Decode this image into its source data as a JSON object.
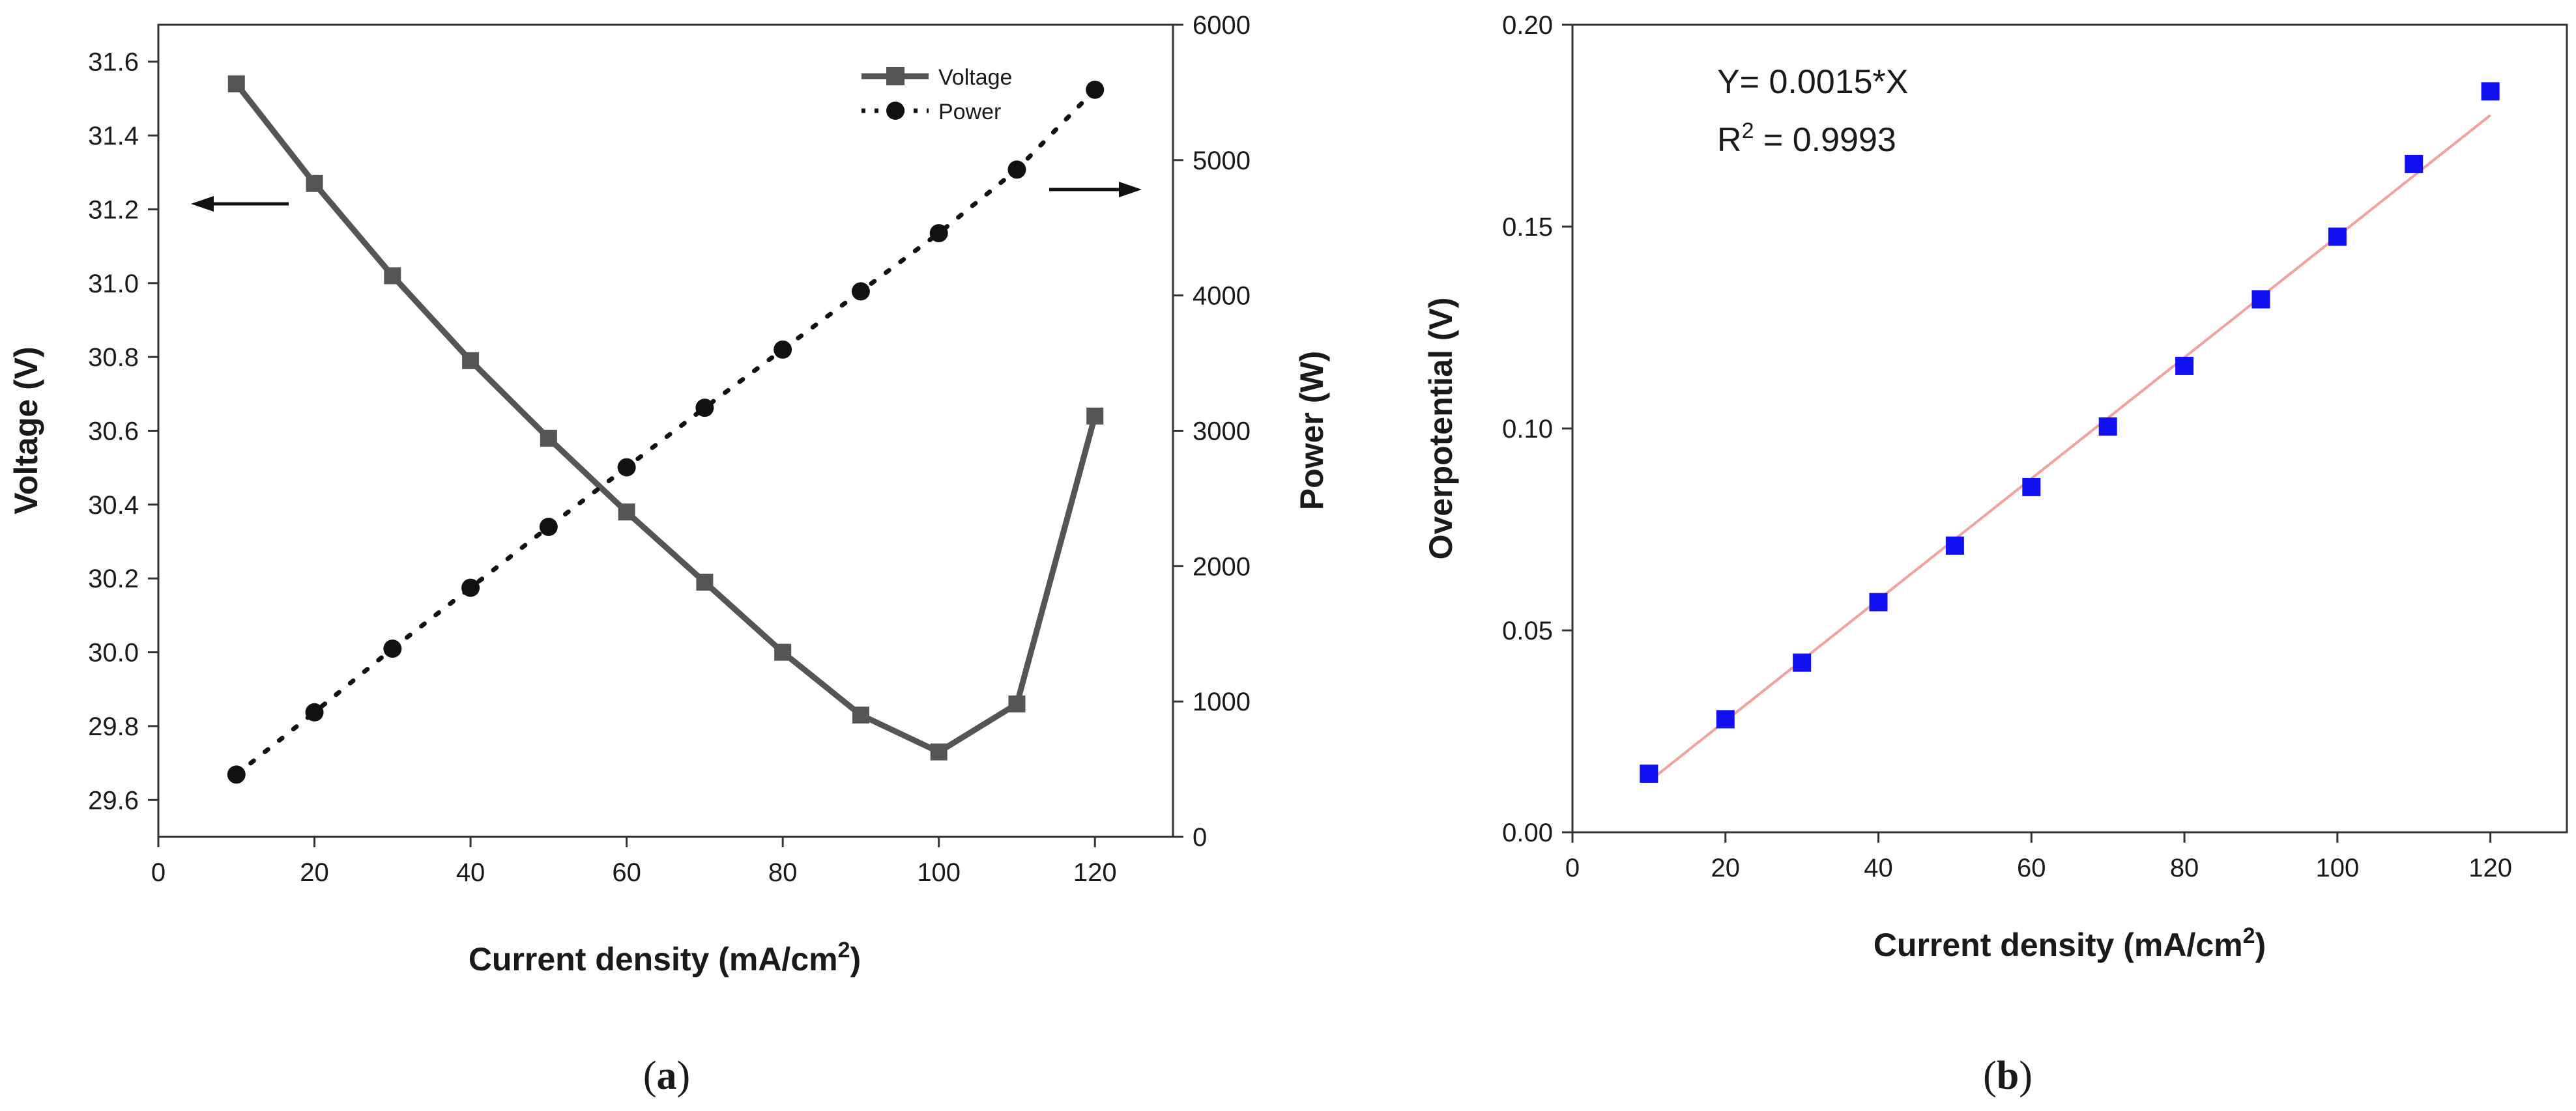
{
  "chart_data": [
    {
      "id": "a",
      "type": "line",
      "caption_letter": "a",
      "xlabel_main": "Current density (mA/cm",
      "xlabel_sup": "2",
      "xlabel_end": ")",
      "ylabel": "Voltage (V)",
      "y2label": "Power (W)",
      "xlim": [
        0,
        130
      ],
      "ylim": [
        29.5,
        31.7
      ],
      "y2lim": [
        0,
        6000
      ],
      "xticks": [
        0,
        20,
        40,
        60,
        80,
        100,
        120
      ],
      "yticks": [
        29.6,
        29.8,
        30.0,
        30.2,
        30.4,
        30.6,
        30.8,
        31.0,
        31.2,
        31.4,
        31.6
      ],
      "ytick_labels": [
        "29.6",
        "29.8",
        "30.0",
        "30.2",
        "30.4",
        "30.6",
        "30.8",
        "31.0",
        "31.2",
        "31.4",
        "31.6"
      ],
      "y2ticks": [
        0,
        1000,
        2000,
        3000,
        4000,
        5000,
        6000
      ],
      "legend_location": "top-right",
      "series": [
        {
          "name": "Voltage",
          "axis": "left",
          "marker": "square",
          "line": "solid",
          "color": "#555555",
          "x": [
            10,
            20,
            30,
            40,
            50,
            60,
            70,
            80,
            90,
            100,
            110,
            120
          ],
          "values": [
            31.54,
            31.27,
            31.02,
            30.79,
            30.58,
            30.38,
            30.19,
            30.0,
            29.83,
            29.73,
            29.86,
            30.64
          ]
        },
        {
          "name": "Power",
          "axis": "right",
          "marker": "circle",
          "line": "dotted",
          "color": "#111111",
          "x": [
            10,
            20,
            30,
            40,
            50,
            60,
            70,
            80,
            90,
            100,
            110,
            120
          ],
          "values": [
            460,
            920,
            1390,
            1840,
            2290,
            2730,
            3170,
            3600,
            4030,
            4460,
            4930,
            5520
          ]
        }
      ]
    },
    {
      "id": "b",
      "type": "scatter",
      "caption_letter": "b",
      "xlabel_main": "Current density (mA/cm",
      "xlabel_sup": "2",
      "xlabel_end": ")",
      "ylabel": "Overpotential (V)",
      "xlim": [
        0,
        130
      ],
      "ylim": [
        0,
        0.2
      ],
      "xticks": [
        0,
        20,
        40,
        60,
        80,
        100,
        120
      ],
      "yticks": [
        0.0,
        0.05,
        0.1,
        0.15,
        0.2
      ],
      "ytick_labels": [
        "0.00",
        "0.05",
        "0.10",
        "0.15",
        "0.20"
      ],
      "annotation_fit": "Y= 0.0015*X",
      "annotation_r_main": "R",
      "annotation_r_sup": "2",
      "annotation_r_end": " = 0.9993",
      "fit": {
        "slope": 0.0015,
        "intercept": -0.0024,
        "x_range": [
          10,
          120
        ],
        "color": "#f2a0a0"
      },
      "series": [
        {
          "name": "Overpotential",
          "marker": "square",
          "color": "#1010f0",
          "x": [
            10,
            20,
            30,
            40,
            50,
            60,
            70,
            80,
            90,
            100,
            110,
            120
          ],
          "values": [
            0.0145,
            0.028,
            0.042,
            0.057,
            0.071,
            0.0855,
            0.1005,
            0.1155,
            0.132,
            0.1475,
            0.1655,
            0.1835
          ]
        }
      ]
    }
  ]
}
